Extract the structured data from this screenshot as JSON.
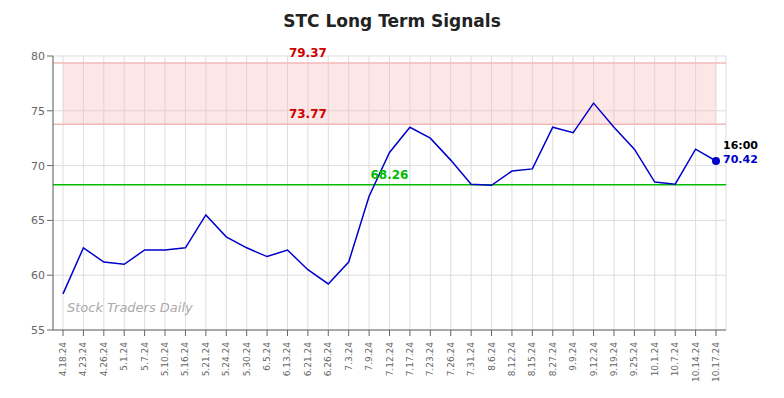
{
  "chart_data": {
    "type": "line",
    "title": "STC Long Term Signals",
    "watermark": "Stock Traders Daily",
    "categories": [
      "4.18.24",
      "4.23.24",
      "4.26.24",
      "5.1.24",
      "5.7.24",
      "5.10.24",
      "5.16.24",
      "5.21.24",
      "5.24.24",
      "5.30.24",
      "6.5.24",
      "6.13.24",
      "6.21.24",
      "6.26.24",
      "7.3.24",
      "7.9.24",
      "7.12.24",
      "7.17.24",
      "7.23.24",
      "7.26.24",
      "7.31.24",
      "8.6.24",
      "8.12.24",
      "8.15.24",
      "8.27.24",
      "9.9.24",
      "9.12.24",
      "9.19.24",
      "9.25.24",
      "10.1.24",
      "10.7.24",
      "10.14.24",
      "10.17.24"
    ],
    "values": [
      58.3,
      62.5,
      61.2,
      61.0,
      62.3,
      62.3,
      62.5,
      65.5,
      63.5,
      62.5,
      61.7,
      62.3,
      60.5,
      59.2,
      61.2,
      67.2,
      71.2,
      73.5,
      72.5,
      70.5,
      68.3,
      68.2,
      69.5,
      69.7,
      73.5,
      73.0,
      75.7,
      73.5,
      71.5,
      68.5,
      68.3,
      71.5,
      70.42
    ],
    "color": "#0000cc",
    "ylim": [
      55,
      80
    ],
    "yticks": [
      55,
      60,
      65,
      70,
      75,
      80
    ],
    "grid": true,
    "band": {
      "from": 73.77,
      "to": 79.37,
      "color": "#f5b8b8"
    },
    "hlines": [
      {
        "y": 79.37,
        "label": "79.37",
        "color": "#cc0000",
        "line_color": "#f5b8b8",
        "label_x": "6.21.24"
      },
      {
        "y": 73.77,
        "label": "73.77",
        "color": "#cc0000",
        "line_color": "#f5b8b8",
        "label_x": "6.21.24"
      },
      {
        "y": 68.26,
        "label": "68.26",
        "color": "#00bb00",
        "line_color": "#00bb00",
        "label_x": "7.12.24"
      }
    ],
    "annotations": [
      {
        "x": "10.17.24",
        "y": 70.42,
        "text": "16:00",
        "color": "#000000",
        "marker": "circle"
      },
      {
        "x": "10.17.24",
        "y": 70.42,
        "text": "70.42",
        "color": "#0000cc"
      }
    ]
  }
}
